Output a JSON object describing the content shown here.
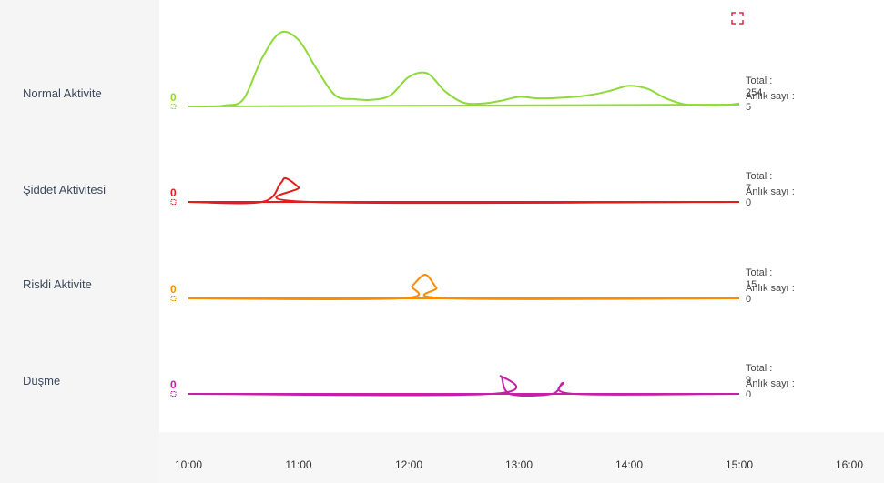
{
  "rows": [
    {
      "label": "Normal Aktivite",
      "start_value": "0",
      "total_label": "Total :",
      "total_value": "254",
      "instant_label": "Anlık sayı :",
      "instant_value": "5"
    },
    {
      "label": "Şiddet Aktivitesi",
      "start_value": "0",
      "total_label": "Total :",
      "total_value": "7",
      "instant_label": "Anlık sayı :",
      "instant_value": "0"
    },
    {
      "label": "Riskli Aktivite",
      "start_value": "0",
      "total_label": "Total :",
      "total_value": "15",
      "instant_label": "Anlık sayı :",
      "instant_value": "0"
    },
    {
      "label": "Düşme",
      "start_value": "0",
      "total_label": "Total :",
      "total_value": "9",
      "instant_label": "Anlık sayı :",
      "instant_value": "0"
    }
  ],
  "icons": {
    "fullscreen": "expand-icon"
  },
  "chart_data": {
    "type": "line",
    "x_ticks": [
      "10:00",
      "11:00",
      "12:00",
      "13:00",
      "14:00",
      "15:00",
      "16:00"
    ],
    "x_range": [
      "10:00",
      "16:00"
    ],
    "series": [
      {
        "color": "#8fd93a",
        "points": [
          [
            "10:00",
            0
          ],
          [
            "10:10",
            0
          ],
          [
            "10:20",
            0.3
          ],
          [
            "10:30",
            2
          ],
          [
            "10:40",
            13
          ],
          [
            "10:50",
            20
          ],
          [
            "11:00",
            18
          ],
          [
            "11:10",
            10
          ],
          [
            "11:20",
            3
          ],
          [
            "11:30",
            2
          ],
          [
            "11:40",
            1.8
          ],
          [
            "11:50",
            3
          ],
          [
            "12:00",
            8
          ],
          [
            "12:10",
            9
          ],
          [
            "12:20",
            4
          ],
          [
            "12:30",
            1
          ],
          [
            "12:40",
            0.8
          ],
          [
            "12:50",
            1.5
          ],
          [
            "13:00",
            2.6
          ],
          [
            "13:10",
            2.2
          ],
          [
            "13:20",
            2.3
          ],
          [
            "13:30",
            2.6
          ],
          [
            "13:40",
            3.2
          ],
          [
            "13:50",
            4.3
          ],
          [
            "14:00",
            5.6
          ],
          [
            "14:10",
            4.8
          ],
          [
            "14:20",
            2.2
          ],
          [
            "14:30",
            0.6
          ],
          [
            "14:40",
            0.4
          ],
          [
            "14:50",
            0.3
          ],
          [
            "15:00",
            0.8
          ]
        ],
        "baseline": [
          [
            "10:00",
            0
          ],
          [
            "15:00",
            1
          ]
        ]
      },
      {
        "color": "#e61c1c",
        "points": [
          [
            "10:00",
            0
          ],
          [
            "10:40",
            0
          ],
          [
            "10:50",
            1
          ],
          [
            "10:53",
            1.3
          ],
          [
            "11:00",
            0.8
          ],
          [
            "11:07",
            0
          ],
          [
            "15:00",
            0
          ]
        ],
        "baseline": [
          [
            "10:00",
            0
          ],
          [
            "15:00",
            0
          ]
        ]
      },
      {
        "color": "#ff8c00",
        "points": [
          [
            "10:00",
            0
          ],
          [
            "11:55",
            0
          ],
          [
            "12:02",
            0.7
          ],
          [
            "12:09",
            1.3
          ],
          [
            "12:15",
            0.6
          ],
          [
            "12:22",
            0
          ],
          [
            "15:00",
            0
          ]
        ],
        "baseline": [
          [
            "10:00",
            0
          ],
          [
            "15:00",
            0
          ]
        ]
      },
      {
        "color": "#c61fa8",
        "points": [
          [
            "10:00",
            0
          ],
          [
            "12:45",
            0
          ],
          [
            "12:50",
            0.9
          ],
          [
            "12:55",
            0
          ],
          [
            "13:18",
            0
          ],
          [
            "13:24",
            0.55
          ],
          [
            "13:30",
            0
          ],
          [
            "15:00",
            0
          ]
        ],
        "baseline": [
          [
            "10:00",
            0
          ],
          [
            "15:00",
            0
          ]
        ]
      }
    ]
  }
}
